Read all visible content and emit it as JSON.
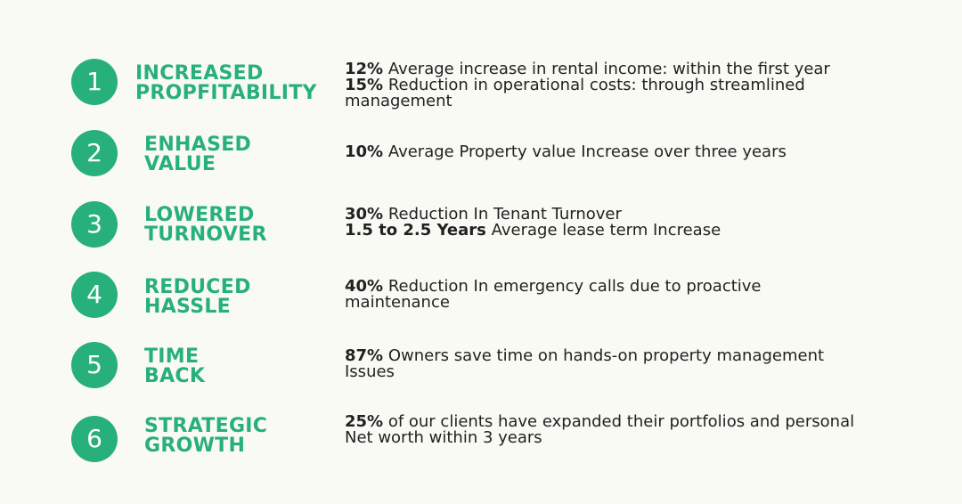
{
  "colors": {
    "background": "#fafaf5",
    "accent": "#27b07a",
    "text": "#222222"
  },
  "items": [
    {
      "number": "1",
      "title_lines": [
        "INCREASED",
        "PROPFITABILITY"
      ],
      "desc_lines": [
        {
          "bold": "12%",
          "text": " Average increase in rental income:  within the first year"
        },
        {
          "bold": "15%",
          "text": " Reduction in operational costs:  through streamlined"
        },
        {
          "bold": "",
          "text": "management"
        }
      ]
    },
    {
      "number": "2",
      "title_lines": [
        "ENHASED",
        "VALUE"
      ],
      "desc_lines": [
        {
          "bold": "10%",
          "text": " Average Property value Increase over three years"
        }
      ]
    },
    {
      "number": "3",
      "title_lines": [
        "LOWERED",
        "TURNOVER"
      ],
      "desc_lines": [
        {
          "bold": "30%",
          "text": " Reduction In Tenant Turnover"
        },
        {
          "bold": "1.5 to 2.5  Years",
          "text": " Average lease term Increase"
        }
      ]
    },
    {
      "number": "4",
      "title_lines": [
        "REDUCED",
        "HASSLE"
      ],
      "desc_lines": [
        {
          "bold": "40%",
          "text": " Reduction In emergency calls due to proactive"
        },
        {
          "bold": "",
          "text": "maintenance"
        }
      ]
    },
    {
      "number": "5",
      "title_lines": [
        "TIME",
        "BACK"
      ],
      "desc_lines": [
        {
          "bold": "87%",
          "text": " Owners save time on hands-on property management"
        },
        {
          "bold": "",
          "text": "Issues"
        }
      ]
    },
    {
      "number": "6",
      "title_lines": [
        "STRATEGIC",
        "GROWTH"
      ],
      "desc_lines": [
        {
          "bold": "25%",
          "text": " of our clients have expanded their portfolios and personal"
        },
        {
          "bold": "",
          "text": "Net worth within 3 years"
        }
      ]
    }
  ]
}
